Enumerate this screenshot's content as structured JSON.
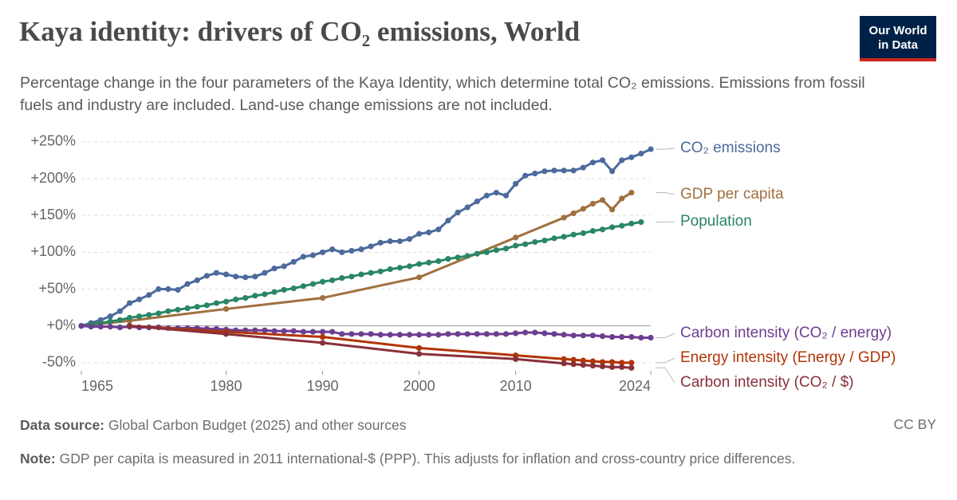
{
  "chart_data": {
    "type": "line",
    "title": "Kaya identity: drivers of CO₂ emissions, World",
    "subtitle": "Percentage change in the four parameters of the Kaya Identity, which determine total CO₂ emissions. Emissions from fossil fuels and industry are included. Land-use change emissions are not included.",
    "logo": "Our World in Data",
    "source_label": "Data source:",
    "source": "Global Carbon Budget (2025) and other sources",
    "note_label": "Note:",
    "note": "GDP per capita is measured in 2011 international-$ (PPP). This adjusts for inflation and cross-country price differences.",
    "license": "CC BY",
    "xlim": [
      1965,
      2024
    ],
    "xticks": [
      1965,
      1980,
      1990,
      2000,
      2010,
      2024
    ],
    "ylim": [
      -61,
      252
    ],
    "yticks": [
      {
        "value": -50,
        "label": "-50%"
      },
      {
        "value": 0,
        "label": "+0%"
      },
      {
        "value": 50,
        "label": "+50%"
      },
      {
        "value": 100,
        "label": "+100%"
      },
      {
        "value": 150,
        "label": "+150%"
      },
      {
        "value": 200,
        "label": "+200%"
      },
      {
        "value": 250,
        "label": "+250%"
      }
    ],
    "grid": true,
    "series": [
      {
        "name": "CO₂ emissions",
        "color": "#4c6a9c",
        "x": [
          1965,
          1966,
          1967,
          1968,
          1969,
          1970,
          1971,
          1972,
          1973,
          1974,
          1975,
          1976,
          1977,
          1978,
          1979,
          1980,
          1981,
          1982,
          1983,
          1984,
          1985,
          1986,
          1987,
          1988,
          1989,
          1990,
          1991,
          1992,
          1993,
          1994,
          1995,
          1996,
          1997,
          1998,
          1999,
          2000,
          2001,
          2002,
          2003,
          2004,
          2005,
          2006,
          2007,
          2008,
          2009,
          2010,
          2011,
          2012,
          2013,
          2014,
          2015,
          2016,
          2017,
          2018,
          2019,
          2020,
          2021,
          2022,
          2023,
          2024
        ],
        "values": [
          0,
          4,
          8,
          13,
          20,
          31,
          36,
          42,
          50,
          50,
          49,
          57,
          62,
          68,
          72,
          70,
          67,
          66,
          67,
          72,
          78,
          81,
          87,
          94,
          96,
          100,
          104,
          100,
          102,
          104,
          108,
          113,
          115,
          115,
          118,
          125,
          127,
          131,
          143,
          154,
          161,
          169,
          177,
          181,
          177,
          193,
          204,
          207,
          210,
          211,
          211,
          211,
          215,
          222,
          225,
          210,
          225,
          229,
          234,
          240
        ]
      },
      {
        "name": "GDP per capita",
        "color": "#a0703e",
        "x": [
          1965,
          1970,
          1980,
          1990,
          2000,
          2010,
          2015,
          2016,
          2017,
          2018,
          2019,
          2020,
          2021,
          2022
        ],
        "values": [
          0,
          7,
          23,
          38,
          66,
          120,
          147,
          153,
          159,
          166,
          171,
          158,
          173,
          181
        ]
      },
      {
        "name": "Population",
        "color": "#2a8666",
        "x": [
          1965,
          1966,
          1967,
          1968,
          1969,
          1970,
          1971,
          1972,
          1973,
          1974,
          1975,
          1976,
          1977,
          1978,
          1979,
          1980,
          1981,
          1982,
          1983,
          1984,
          1985,
          1986,
          1987,
          1988,
          1989,
          1990,
          1991,
          1992,
          1993,
          1994,
          1995,
          1996,
          1997,
          1998,
          1999,
          2000,
          2001,
          2002,
          2003,
          2004,
          2005,
          2006,
          2007,
          2008,
          2009,
          2010,
          2011,
          2012,
          2013,
          2014,
          2015,
          2016,
          2017,
          2018,
          2019,
          2020,
          2021,
          2022,
          2023
        ],
        "values": [
          0,
          2,
          4,
          6,
          8,
          11,
          13,
          15,
          17,
          20,
          22,
          24,
          26,
          28,
          31,
          33,
          36,
          38,
          41,
          43,
          46,
          49,
          51,
          54,
          57,
          60,
          62,
          65,
          67,
          70,
          72,
          74,
          77,
          79,
          81,
          84,
          86,
          88,
          91,
          93,
          95,
          98,
          100,
          103,
          105,
          109,
          111,
          114,
          116,
          119,
          121,
          124,
          126,
          129,
          131,
          134,
          136,
          139,
          141
        ]
      },
      {
        "name": "Carbon intensity (CO₂ / energy)",
        "color": "#6d3e91",
        "x": [
          1965,
          1966,
          1967,
          1968,
          1969,
          1970,
          1971,
          1972,
          1973,
          1974,
          1975,
          1976,
          1977,
          1978,
          1979,
          1980,
          1981,
          1982,
          1983,
          1984,
          1985,
          1986,
          1987,
          1988,
          1989,
          1990,
          1991,
          1992,
          1993,
          1994,
          1995,
          1996,
          1997,
          1998,
          1999,
          2000,
          2001,
          2002,
          2003,
          2004,
          2005,
          2006,
          2007,
          2008,
          2009,
          2010,
          2011,
          2012,
          2013,
          2014,
          2015,
          2016,
          2017,
          2018,
          2019,
          2020,
          2021,
          2022,
          2023,
          2024
        ],
        "values": [
          0,
          -1,
          -1,
          -1,
          -2,
          -1,
          -2,
          -2,
          -2,
          -3,
          -3,
          -3,
          -3,
          -4,
          -4,
          -5,
          -6,
          -6,
          -6,
          -6,
          -7,
          -7,
          -7,
          -8,
          -8,
          -8,
          -8,
          -11,
          -11,
          -11,
          -11,
          -12,
          -12,
          -12,
          -12,
          -12,
          -12,
          -12,
          -11,
          -11,
          -11,
          -11,
          -11,
          -11,
          -11,
          -10,
          -9,
          -9,
          -10,
          -11,
          -12,
          -13,
          -13,
          -13,
          -14,
          -15,
          -15,
          -15,
          -16,
          -16
        ]
      },
      {
        "name": "Energy intensity (Energy / GDP)",
        "color": "#b13507",
        "x": [
          1970,
          1980,
          1990,
          2000,
          2010,
          2015,
          2016,
          2017,
          2018,
          2019,
          2020,
          2021,
          2022
        ],
        "values": [
          0,
          -8,
          -15,
          -30,
          -40,
          -45,
          -46,
          -47,
          -48,
          -49,
          -49,
          -50,
          -50
        ]
      },
      {
        "name": "Carbon intensity (CO₂ / $)",
        "color": "#883039",
        "x": [
          1970,
          1980,
          1990,
          2000,
          2010,
          2015,
          2016,
          2017,
          2018,
          2019,
          2020,
          2021,
          2022
        ],
        "values": [
          0,
          -11,
          -23,
          -38,
          -45,
          -51,
          -52,
          -53,
          -54,
          -55,
          -56,
          -56,
          -57
        ]
      }
    ]
  }
}
